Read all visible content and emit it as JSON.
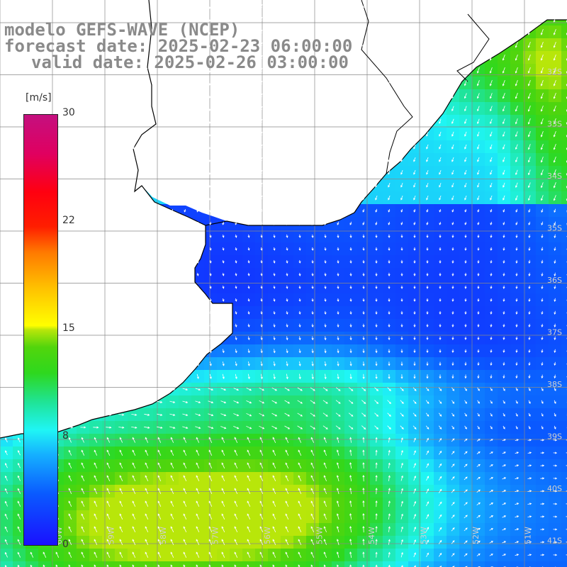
{
  "header": {
    "line1": "modelo GEFS-WAVE (NCEP)",
    "line2": "forecast date: 2025-02-23 06:00:00",
    "line3": "valid date: 2025-02-26 03:00:00"
  },
  "colorbar": {
    "unit": "[m/s]",
    "min": 0,
    "max": 30,
    "tick_labels": [
      "30",
      "22",
      "15",
      "8",
      "0"
    ],
    "tick_values": [
      30,
      22,
      15,
      8,
      0
    ]
  },
  "map": {
    "lat_labels": [
      "32S",
      "33S",
      "34S",
      "35S",
      "36S",
      "37S",
      "38S",
      "39S",
      "40S",
      "41S"
    ],
    "lon_labels": [
      "60W",
      "59W",
      "58W",
      "57W",
      "56W",
      "55W",
      "54W",
      "53W",
      "52W",
      "51W"
    ],
    "grid": true,
    "land_color": "#ffffff",
    "coast_color": "#000000",
    "arrow_color": "#ffffff"
  }
}
